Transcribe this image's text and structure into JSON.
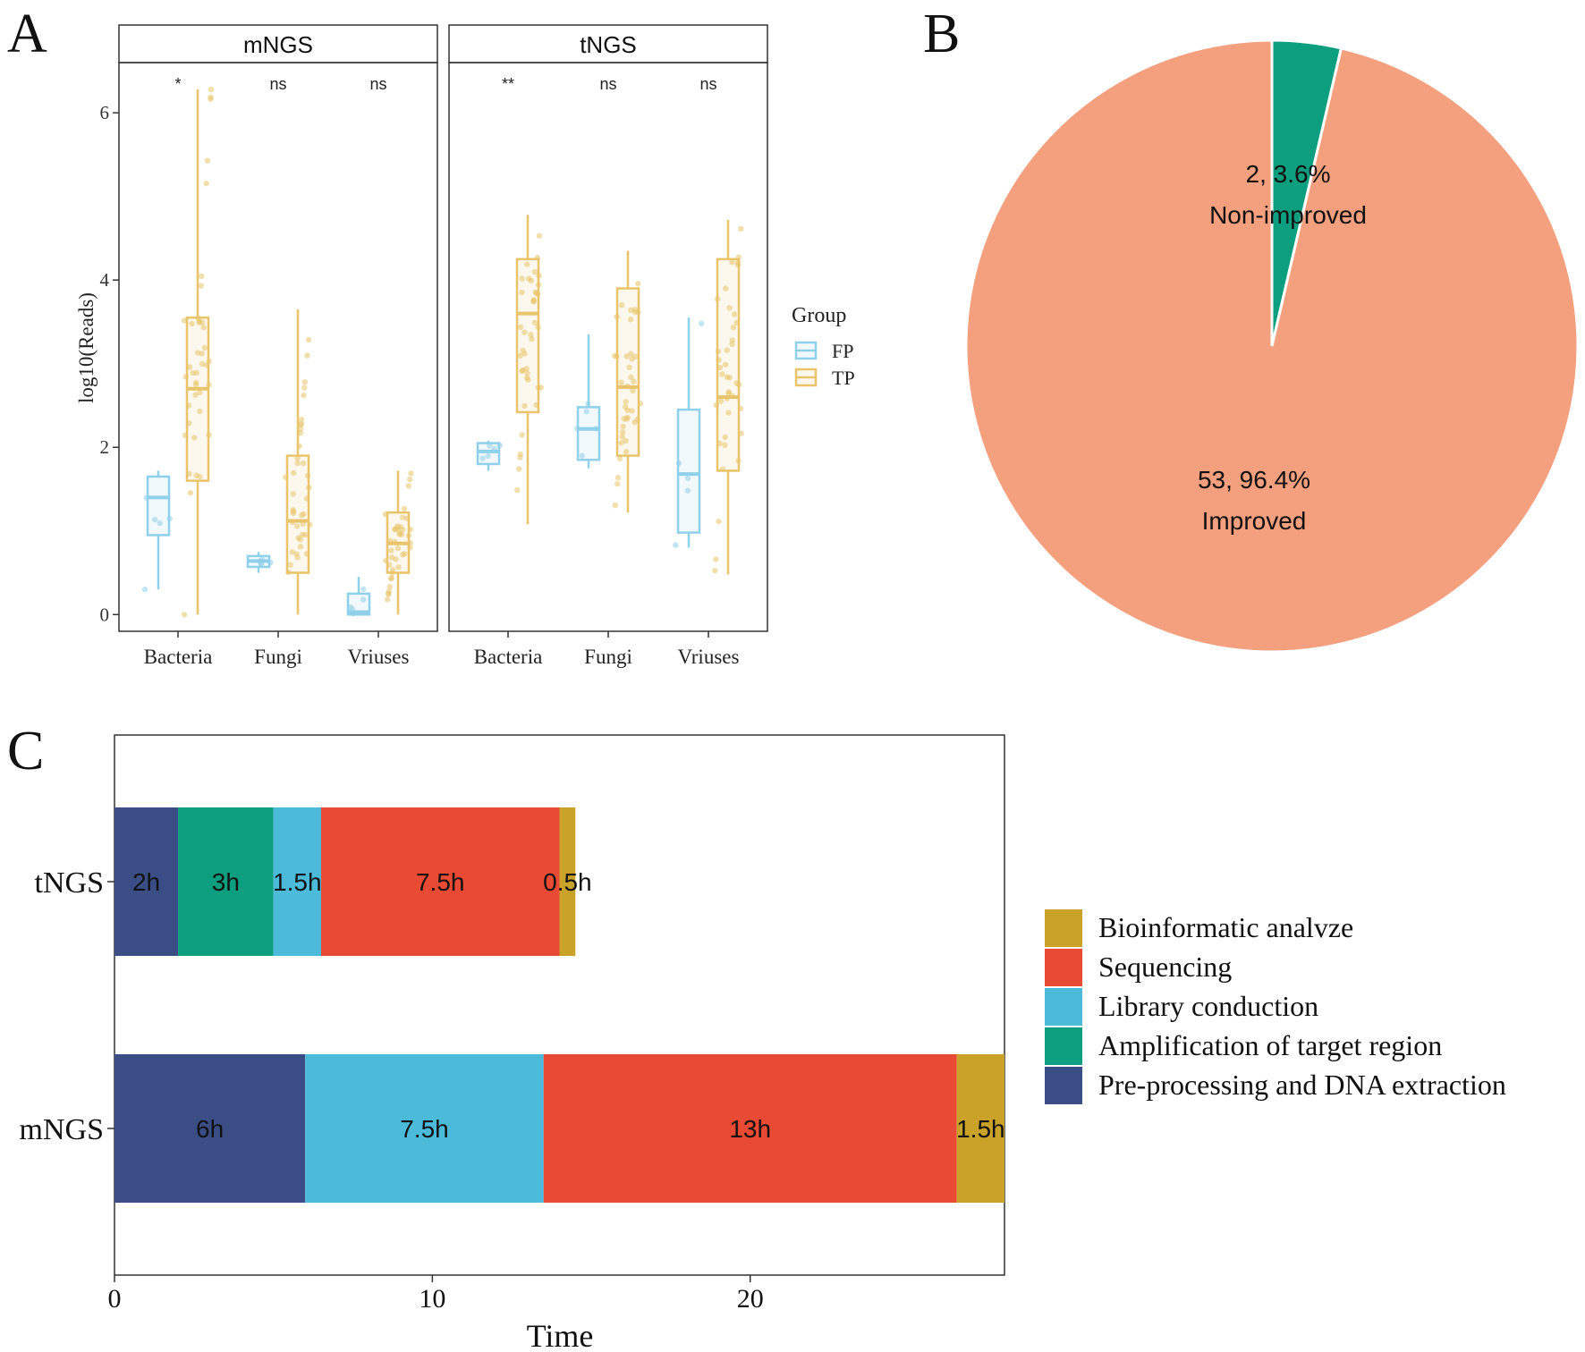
{
  "panels": {
    "a": "A",
    "b": "B",
    "c": "C"
  },
  "colors": {
    "fp": "#8fd0ea",
    "tp": "#e9c46a",
    "improved": "#f4a07f",
    "non_improved": "#0b9e7f",
    "bioinformatic": "#c9a227",
    "sequencing": "#e84a33",
    "library": "#4bbbd9",
    "amplification": "#0b9e7f",
    "preprocessing": "#3a4d85"
  },
  "chart_data": [
    {
      "type": "box",
      "facets": [
        "mNGS",
        "tNGS"
      ],
      "categories": [
        "Bacteria",
        "Fungi",
        "Vriuses"
      ],
      "ylabel": "log10(Reads)",
      "ylim": [
        -0.2,
        6.6
      ],
      "yticks": [
        0,
        2,
        4,
        6
      ],
      "significance": {
        "mNGS": [
          "*",
          "ns",
          "ns"
        ],
        "tNGS": [
          "**",
          "ns",
          "ns"
        ]
      },
      "legend": {
        "title": "Group",
        "items": [
          "FP",
          "TP"
        ],
        "placement": "right"
      },
      "series": [
        {
          "facet": "mNGS",
          "category": "Bacteria",
          "FP": {
            "min": 0.3,
            "q1": 0.95,
            "median": 1.4,
            "q3": 1.65,
            "max": 1.72
          },
          "TP": {
            "min": 0.0,
            "q1": 1.6,
            "median": 2.7,
            "q3": 3.55,
            "max": 6.28
          }
        },
        {
          "facet": "mNGS",
          "category": "Fungi",
          "FP": {
            "min": 0.5,
            "q1": 0.57,
            "median": 0.64,
            "q3": 0.7,
            "max": 0.75
          },
          "TP": {
            "min": 0.0,
            "q1": 0.5,
            "median": 1.12,
            "q3": 1.9,
            "max": 3.65
          }
        },
        {
          "facet": "mNGS",
          "category": "Vriuses",
          "FP": {
            "min": 0.0,
            "q1": 0.0,
            "median": 0.03,
            "q3": 0.25,
            "max": 0.45
          },
          "TP": {
            "min": 0.0,
            "q1": 0.5,
            "median": 0.85,
            "q3": 1.22,
            "max": 1.72
          }
        },
        {
          "facet": "tNGS",
          "category": "Bacteria",
          "FP": {
            "min": 1.72,
            "q1": 1.8,
            "median": 1.95,
            "q3": 2.05,
            "max": 2.08
          },
          "TP": {
            "min": 1.08,
            "q1": 2.42,
            "median": 3.6,
            "q3": 4.25,
            "max": 4.78
          }
        },
        {
          "facet": "tNGS",
          "category": "Fungi",
          "FP": {
            "min": 1.75,
            "q1": 1.85,
            "median": 2.22,
            "q3": 2.48,
            "max": 3.35
          },
          "TP": {
            "min": 1.22,
            "q1": 1.9,
            "median": 2.72,
            "q3": 3.9,
            "max": 4.35
          }
        },
        {
          "facet": "tNGS",
          "category": "Vriuses",
          "FP": {
            "min": 0.8,
            "q1": 0.98,
            "median": 1.68,
            "q3": 2.45,
            "max": 3.55
          },
          "TP": {
            "min": 0.48,
            "q1": 1.72,
            "median": 2.6,
            "q3": 4.25,
            "max": 4.72
          }
        }
      ]
    },
    {
      "type": "pie",
      "slices": [
        {
          "name": "Non-improved",
          "count": 2,
          "percent": 3.6,
          "label": "2, 3.6%"
        },
        {
          "name": "Improved",
          "count": 53,
          "percent": 96.4,
          "label": "53, 96.4%"
        }
      ]
    },
    {
      "type": "bar",
      "orientation": "horizontal",
      "stacked": true,
      "categories": [
        "tNGS",
        "mNGS"
      ],
      "xlabel": "Time",
      "xlim": [
        0,
        28
      ],
      "xticks": [
        0,
        10,
        20
      ],
      "legend_placement": "right",
      "series": [
        {
          "name": "Pre-processing and DNA extraction",
          "key": "preprocessing",
          "values": [
            2,
            6
          ],
          "labels": [
            "2h",
            "6h"
          ]
        },
        {
          "name": "Amplification of target region",
          "key": "amplification",
          "values": [
            3,
            0
          ],
          "labels": [
            "3h",
            ""
          ]
        },
        {
          "name": "Library conduction",
          "key": "library",
          "values": [
            1.5,
            7.5
          ],
          "labels": [
            "1.5h",
            "7.5h"
          ]
        },
        {
          "name": "Sequencing",
          "key": "sequencing",
          "values": [
            7.5,
            13
          ],
          "labels": [
            "7.5h",
            "13h"
          ]
        },
        {
          "name": "Bioinformatic analvze",
          "key": "bioinformatic",
          "values": [
            0.5,
            1.5
          ],
          "labels": [
            "0.5h",
            "1.5h"
          ]
        }
      ],
      "legend_order": [
        "bioinformatic",
        "sequencing",
        "library",
        "amplification",
        "preprocessing"
      ]
    }
  ]
}
